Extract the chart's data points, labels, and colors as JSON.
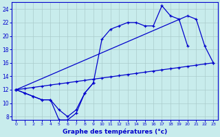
{
  "xlabel": "Graphe des températures (°c)",
  "background_color": "#c8ecec",
  "line_color": "#0000cc",
  "grid_color": "#aacccc",
  "x_values": [
    0,
    1,
    2,
    3,
    4,
    5,
    6,
    7,
    8,
    9,
    10,
    11,
    12,
    13,
    14,
    15,
    16,
    17,
    18,
    19,
    20,
    21,
    22,
    23
  ],
  "line1": [
    12,
    11.5,
    11.0,
    10.5,
    10.5,
    7.5,
    7.5,
    8.5,
    11.5,
    13.0,
    19.5,
    21.0,
    21.5,
    22.0,
    22.0,
    21.5,
    21.5,
    24.5,
    23.0,
    22.5,
    18.5,
    null,
    null,
    null
  ],
  "line2": [
    12,
    11.5,
    11.0,
    10.5,
    10.5,
    9.0,
    8.0,
    9.0,
    11.5,
    13.0,
    null,
    null,
    null,
    null,
    null,
    null,
    null,
    null,
    null,
    null,
    null,
    null,
    null,
    null
  ],
  "line3": [
    12,
    null,
    null,
    null,
    null,
    null,
    null,
    null,
    null,
    null,
    null,
    null,
    null,
    null,
    null,
    null,
    null,
    null,
    null,
    null,
    23.0,
    22.5,
    18.5,
    16.0
  ],
  "line4": [
    12.0,
    12.17,
    12.35,
    12.52,
    12.7,
    12.87,
    13.04,
    13.22,
    13.39,
    13.57,
    13.74,
    13.91,
    14.09,
    14.26,
    14.43,
    14.61,
    14.78,
    14.96,
    15.13,
    15.3,
    15.48,
    15.65,
    15.83,
    16.0
  ],
  "ylim": [
    7.5,
    25.0
  ],
  "xlim": [
    -0.5,
    23.5
  ],
  "yticks": [
    8,
    10,
    12,
    14,
    16,
    18,
    20,
    22,
    24
  ],
  "xticks": [
    0,
    1,
    2,
    3,
    4,
    5,
    6,
    7,
    8,
    9,
    10,
    11,
    12,
    13,
    14,
    15,
    16,
    17,
    18,
    19,
    20,
    21,
    22,
    23
  ]
}
